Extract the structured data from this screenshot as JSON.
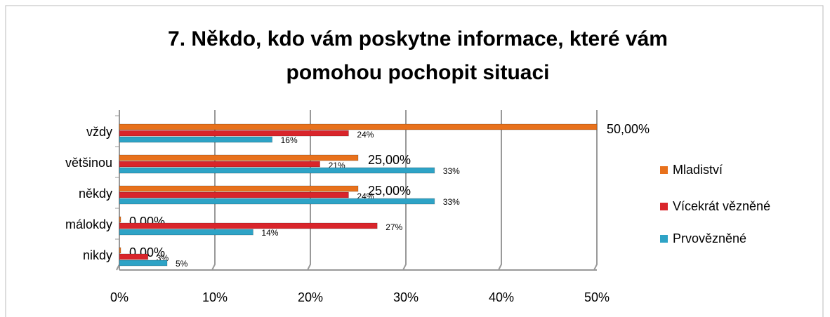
{
  "chart_data": {
    "type": "bar",
    "orientation": "horizontal",
    "title": "7. Někdo, kdo vám poskytne informace, které vám pomohou pochopit situaci",
    "categories": [
      "vždy",
      "většinou",
      "někdy",
      "málokdy",
      "nikdy"
    ],
    "series": [
      {
        "name": "Mladiství",
        "color": "#e8711c",
        "values": [
          50,
          25,
          25,
          0,
          0
        ],
        "value_labels": [
          "50,00%",
          "25,00%",
          "25,00%",
          "0,00%",
          "0,00%"
        ]
      },
      {
        "name": "Vícekrát vězněné",
        "color": "#d9252b",
        "values": [
          24,
          21,
          24,
          27,
          3
        ],
        "value_labels": [
          "24%",
          "21%",
          "24%",
          "27%",
          "3%"
        ]
      },
      {
        "name": "Prvovězněné",
        "color": "#2ea3c6",
        "values": [
          16,
          33,
          33,
          14,
          5
        ],
        "value_labels": [
          "16%",
          "33%",
          "33%",
          "14%",
          "5%"
        ]
      }
    ],
    "xlim": [
      0,
      50
    ],
    "xticks": [
      {
        "value": 0,
        "label": "0%"
      },
      {
        "value": 10,
        "label": "10%"
      },
      {
        "value": 20,
        "label": "20%"
      },
      {
        "value": 30,
        "label": "30%"
      },
      {
        "value": 40,
        "label": "40%"
      },
      {
        "value": 50,
        "label": "50%"
      }
    ],
    "grid": true,
    "legend": "right"
  }
}
